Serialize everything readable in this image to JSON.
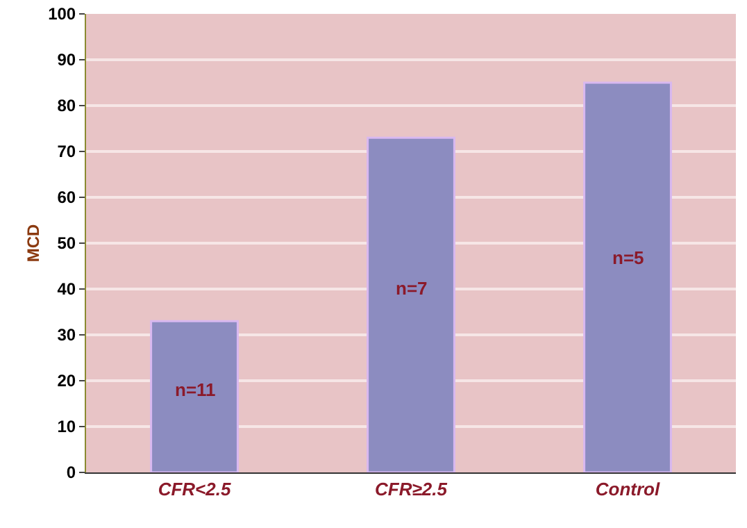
{
  "chart_data": {
    "type": "bar",
    "ylabel": "MCD",
    "categories": [
      "CFR<2.5",
      "CFR≥2.5",
      "Control"
    ],
    "values": [
      33,
      73,
      85
    ],
    "color": "#8c8cc0",
    "ylim": [
      0,
      100
    ],
    "yticks": [
      0,
      10,
      20,
      30,
      40,
      50,
      60,
      70,
      80,
      90,
      100
    ],
    "grid": "y",
    "annotations": [
      "n=11",
      "n=7",
      "n=5"
    ]
  }
}
